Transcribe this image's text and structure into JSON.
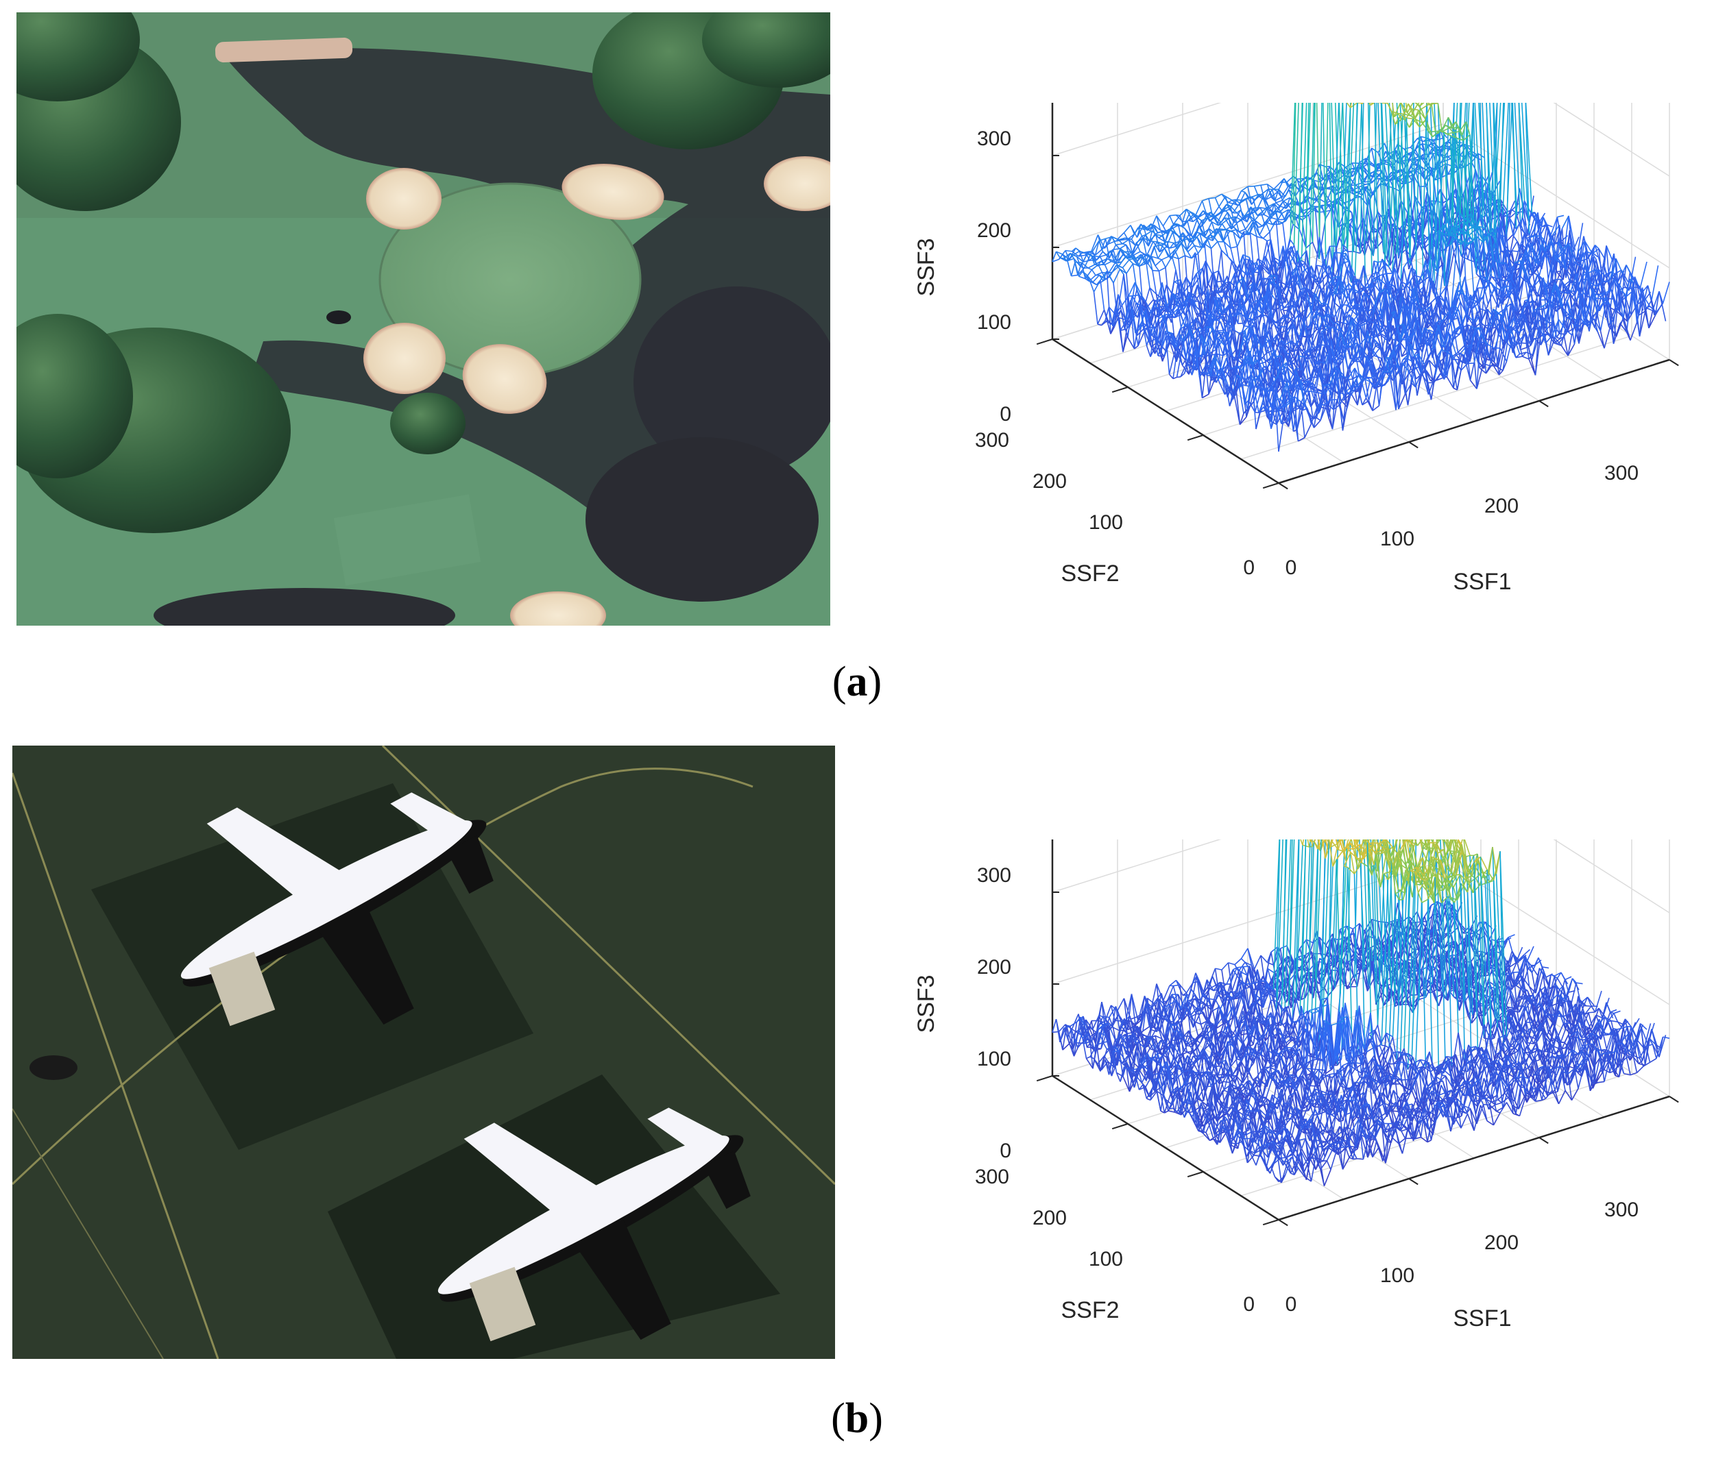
{
  "figure": {
    "panels": [
      {
        "id": "a",
        "caption_open": "(",
        "caption_letter": "a",
        "caption_close": ")",
        "photo_description_icon": "aerial-golf-course-photo",
        "plot": {
          "zlabel": "SSF3",
          "xlabel": "SSF1",
          "ylabel": "SSF2",
          "z_ticks": [
            "0",
            "100",
            "200",
            "300"
          ],
          "x_ticks": [
            "0",
            "100",
            "200",
            "300"
          ],
          "y_ticks": [
            "0",
            "100",
            "200",
            "300"
          ]
        }
      },
      {
        "id": "b",
        "caption_open": "(",
        "caption_letter": "b",
        "caption_close": ")",
        "photo_description_icon": "aerial-airplanes-photo",
        "plot": {
          "zlabel": "SSF3",
          "xlabel": "SSF1",
          "ylabel": "SSF2",
          "z_ticks": [
            "0",
            "100",
            "200",
            "300"
          ],
          "x_ticks": [
            "0",
            "100",
            "200",
            "300"
          ],
          "y_ticks": [
            "0",
            "100",
            "200",
            "300"
          ]
        }
      }
    ]
  },
  "chart_data": [
    {
      "type": "surface",
      "panel": "a",
      "xlabel": "SSF1",
      "ylabel": "SSF2",
      "zlabel": "SSF3",
      "xlim": [
        0,
        300
      ],
      "ylim": [
        0,
        300
      ],
      "zlim": [
        0,
        300
      ],
      "grid": true,
      "colormap": "parula",
      "peaks_ssf3_approx": [
        300,
        280,
        270,
        260,
        250,
        230
      ]
    },
    {
      "type": "surface",
      "panel": "b",
      "xlabel": "SSF1",
      "ylabel": "SSF2",
      "zlabel": "SSF3",
      "xlim": [
        0,
        300
      ],
      "ylim": [
        0,
        300
      ],
      "zlim": [
        0,
        300
      ],
      "grid": true,
      "colormap": "parula",
      "peaks_ssf3_approx": [
        280,
        270
      ]
    }
  ],
  "colors": {
    "parula_low": "#3e26a8",
    "parula_mid": "#1fa6d8",
    "parula_high": "#f9fb15",
    "grass": "#5e8e68",
    "tarmac": "#2c3a2a"
  }
}
